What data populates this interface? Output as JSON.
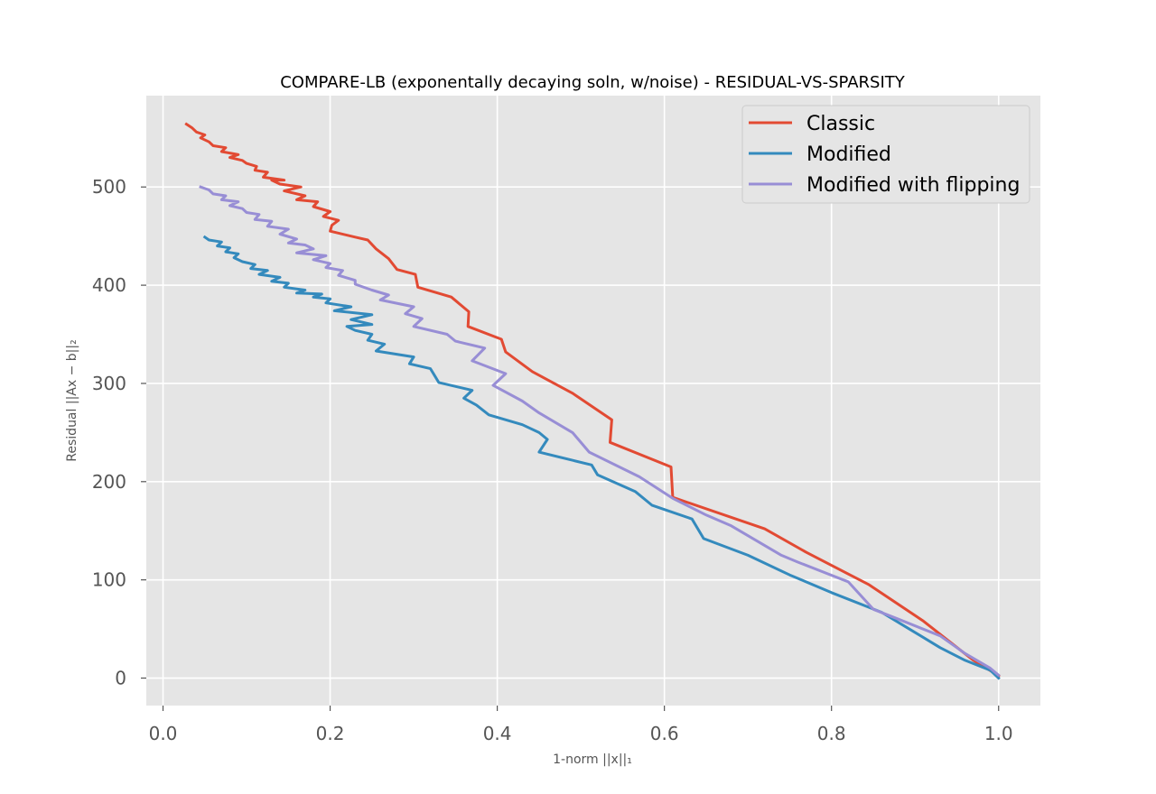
{
  "chart_data": {
    "type": "line",
    "title": "COMPARE-LB (exponentally decaying soln, w/noise) - RESIDUAL-VS-SPARSITY",
    "xlabel": "1-norm ||x||₁",
    "ylabel": "Residual ||Ax − b||₂",
    "xlim": [
      -0.02,
      1.05
    ],
    "ylim": [
      -28,
      593
    ],
    "xticks": [
      0.0,
      0.2,
      0.4,
      0.6,
      0.8,
      1.0
    ],
    "xtick_labels": [
      "0.0",
      "0.2",
      "0.4",
      "0.6",
      "0.8",
      "1.0"
    ],
    "yticks": [
      0,
      100,
      200,
      300,
      400,
      500
    ],
    "ytick_labels": [
      "0",
      "100",
      "200",
      "300",
      "400",
      "500"
    ],
    "grid": true,
    "legend_position": "top-right",
    "series": [
      {
        "name": "Classic",
        "color": "#e24a33",
        "points": [
          [
            1.0,
            2
          ],
          [
            0.995,
            5
          ],
          [
            0.97,
            18
          ],
          [
            0.94,
            38
          ],
          [
            0.91,
            58
          ],
          [
            0.845,
            95
          ],
          [
            0.77,
            128
          ],
          [
            0.72,
            152
          ],
          [
            0.61,
            184
          ],
          [
            0.608,
            215
          ],
          [
            0.535,
            240
          ],
          [
            0.537,
            263
          ],
          [
            0.49,
            290
          ],
          [
            0.442,
            312
          ],
          [
            0.41,
            332
          ],
          [
            0.405,
            345
          ],
          [
            0.365,
            358
          ],
          [
            0.366,
            373
          ],
          [
            0.345,
            388
          ],
          [
            0.305,
            398
          ],
          [
            0.302,
            411
          ],
          [
            0.28,
            416
          ],
          [
            0.27,
            427
          ],
          [
            0.255,
            437
          ],
          [
            0.245,
            446
          ],
          [
            0.23,
            449
          ],
          [
            0.2,
            455
          ],
          [
            0.202,
            461
          ],
          [
            0.21,
            466
          ],
          [
            0.192,
            470
          ],
          [
            0.2,
            475
          ],
          [
            0.18,
            480
          ],
          [
            0.185,
            485
          ],
          [
            0.16,
            487
          ],
          [
            0.17,
            491
          ],
          [
            0.145,
            496
          ],
          [
            0.165,
            500
          ],
          [
            0.14,
            503
          ],
          [
            0.13,
            507
          ],
          [
            0.145,
            507
          ],
          [
            0.12,
            510
          ],
          [
            0.125,
            515
          ],
          [
            0.11,
            517
          ],
          [
            0.112,
            521
          ],
          [
            0.1,
            524
          ],
          [
            0.095,
            527
          ],
          [
            0.08,
            530
          ],
          [
            0.09,
            533
          ],
          [
            0.07,
            536
          ],
          [
            0.075,
            540
          ],
          [
            0.06,
            542
          ],
          [
            0.055,
            546
          ],
          [
            0.045,
            550
          ],
          [
            0.05,
            553
          ],
          [
            0.04,
            556
          ],
          [
            0.035,
            560
          ],
          [
            0.028,
            564
          ]
        ]
      },
      {
        "name": "Modified",
        "color": "#348abd",
        "points": [
          [
            1.0,
            0
          ],
          [
            0.99,
            8
          ],
          [
            0.96,
            18
          ],
          [
            0.93,
            31
          ],
          [
            0.895,
            49
          ],
          [
            0.86,
            67
          ],
          [
            0.8,
            87
          ],
          [
            0.75,
            105
          ],
          [
            0.7,
            125
          ],
          [
            0.647,
            142
          ],
          [
            0.633,
            162
          ],
          [
            0.585,
            176
          ],
          [
            0.565,
            190
          ],
          [
            0.52,
            207
          ],
          [
            0.513,
            217
          ],
          [
            0.45,
            230
          ],
          [
            0.46,
            243
          ],
          [
            0.45,
            250
          ],
          [
            0.43,
            258
          ],
          [
            0.39,
            268
          ],
          [
            0.375,
            278
          ],
          [
            0.36,
            285
          ],
          [
            0.37,
            293
          ],
          [
            0.33,
            301
          ],
          [
            0.325,
            308
          ],
          [
            0.32,
            315
          ],
          [
            0.295,
            320
          ],
          [
            0.3,
            327
          ],
          [
            0.255,
            333
          ],
          [
            0.265,
            340
          ],
          [
            0.245,
            344
          ],
          [
            0.25,
            350
          ],
          [
            0.23,
            354
          ],
          [
            0.22,
            358
          ],
          [
            0.25,
            360
          ],
          [
            0.225,
            365
          ],
          [
            0.25,
            370
          ],
          [
            0.205,
            374
          ],
          [
            0.225,
            378
          ],
          [
            0.195,
            382
          ],
          [
            0.2,
            386
          ],
          [
            0.18,
            388
          ],
          [
            0.19,
            391
          ],
          [
            0.16,
            392
          ],
          [
            0.17,
            395
          ],
          [
            0.145,
            398
          ],
          [
            0.15,
            402
          ],
          [
            0.13,
            404
          ],
          [
            0.14,
            408
          ],
          [
            0.115,
            411
          ],
          [
            0.125,
            415
          ],
          [
            0.105,
            417
          ],
          [
            0.11,
            421
          ],
          [
            0.095,
            424
          ],
          [
            0.085,
            428
          ],
          [
            0.09,
            432
          ],
          [
            0.075,
            434
          ],
          [
            0.08,
            438
          ],
          [
            0.065,
            440
          ],
          [
            0.07,
            444
          ],
          [
            0.055,
            446
          ],
          [
            0.05,
            449
          ]
        ]
      },
      {
        "name": "Modified with flipping",
        "color": "#988ed5",
        "points": [
          [
            1.0,
            3
          ],
          [
            0.99,
            10
          ],
          [
            0.96,
            25
          ],
          [
            0.93,
            43
          ],
          [
            0.88,
            60
          ],
          [
            0.85,
            70
          ],
          [
            0.82,
            98
          ],
          [
            0.76,
            118
          ],
          [
            0.74,
            125
          ],
          [
            0.68,
            155
          ],
          [
            0.65,
            166
          ],
          [
            0.61,
            183
          ],
          [
            0.57,
            205
          ],
          [
            0.51,
            230
          ],
          [
            0.49,
            250
          ],
          [
            0.45,
            270
          ],
          [
            0.43,
            282
          ],
          [
            0.395,
            298
          ],
          [
            0.41,
            310
          ],
          [
            0.37,
            323
          ],
          [
            0.385,
            336
          ],
          [
            0.35,
            343
          ],
          [
            0.34,
            350
          ],
          [
            0.3,
            358
          ],
          [
            0.31,
            366
          ],
          [
            0.29,
            371
          ],
          [
            0.3,
            378
          ],
          [
            0.26,
            385
          ],
          [
            0.27,
            390
          ],
          [
            0.25,
            395
          ],
          [
            0.23,
            401
          ],
          [
            0.23,
            405
          ],
          [
            0.21,
            410
          ],
          [
            0.215,
            415
          ],
          [
            0.195,
            418
          ],
          [
            0.2,
            422
          ],
          [
            0.18,
            426
          ],
          [
            0.195,
            430
          ],
          [
            0.16,
            433
          ],
          [
            0.18,
            437
          ],
          [
            0.17,
            441
          ],
          [
            0.15,
            443
          ],
          [
            0.16,
            447
          ],
          [
            0.14,
            452
          ],
          [
            0.15,
            457
          ],
          [
            0.125,
            460
          ],
          [
            0.13,
            465
          ],
          [
            0.11,
            467
          ],
          [
            0.115,
            472
          ],
          [
            0.1,
            474
          ],
          [
            0.095,
            478
          ],
          [
            0.08,
            481
          ],
          [
            0.09,
            485
          ],
          [
            0.07,
            487
          ],
          [
            0.075,
            491
          ],
          [
            0.06,
            493
          ],
          [
            0.055,
            497
          ],
          [
            0.045,
            500
          ]
        ]
      }
    ]
  }
}
